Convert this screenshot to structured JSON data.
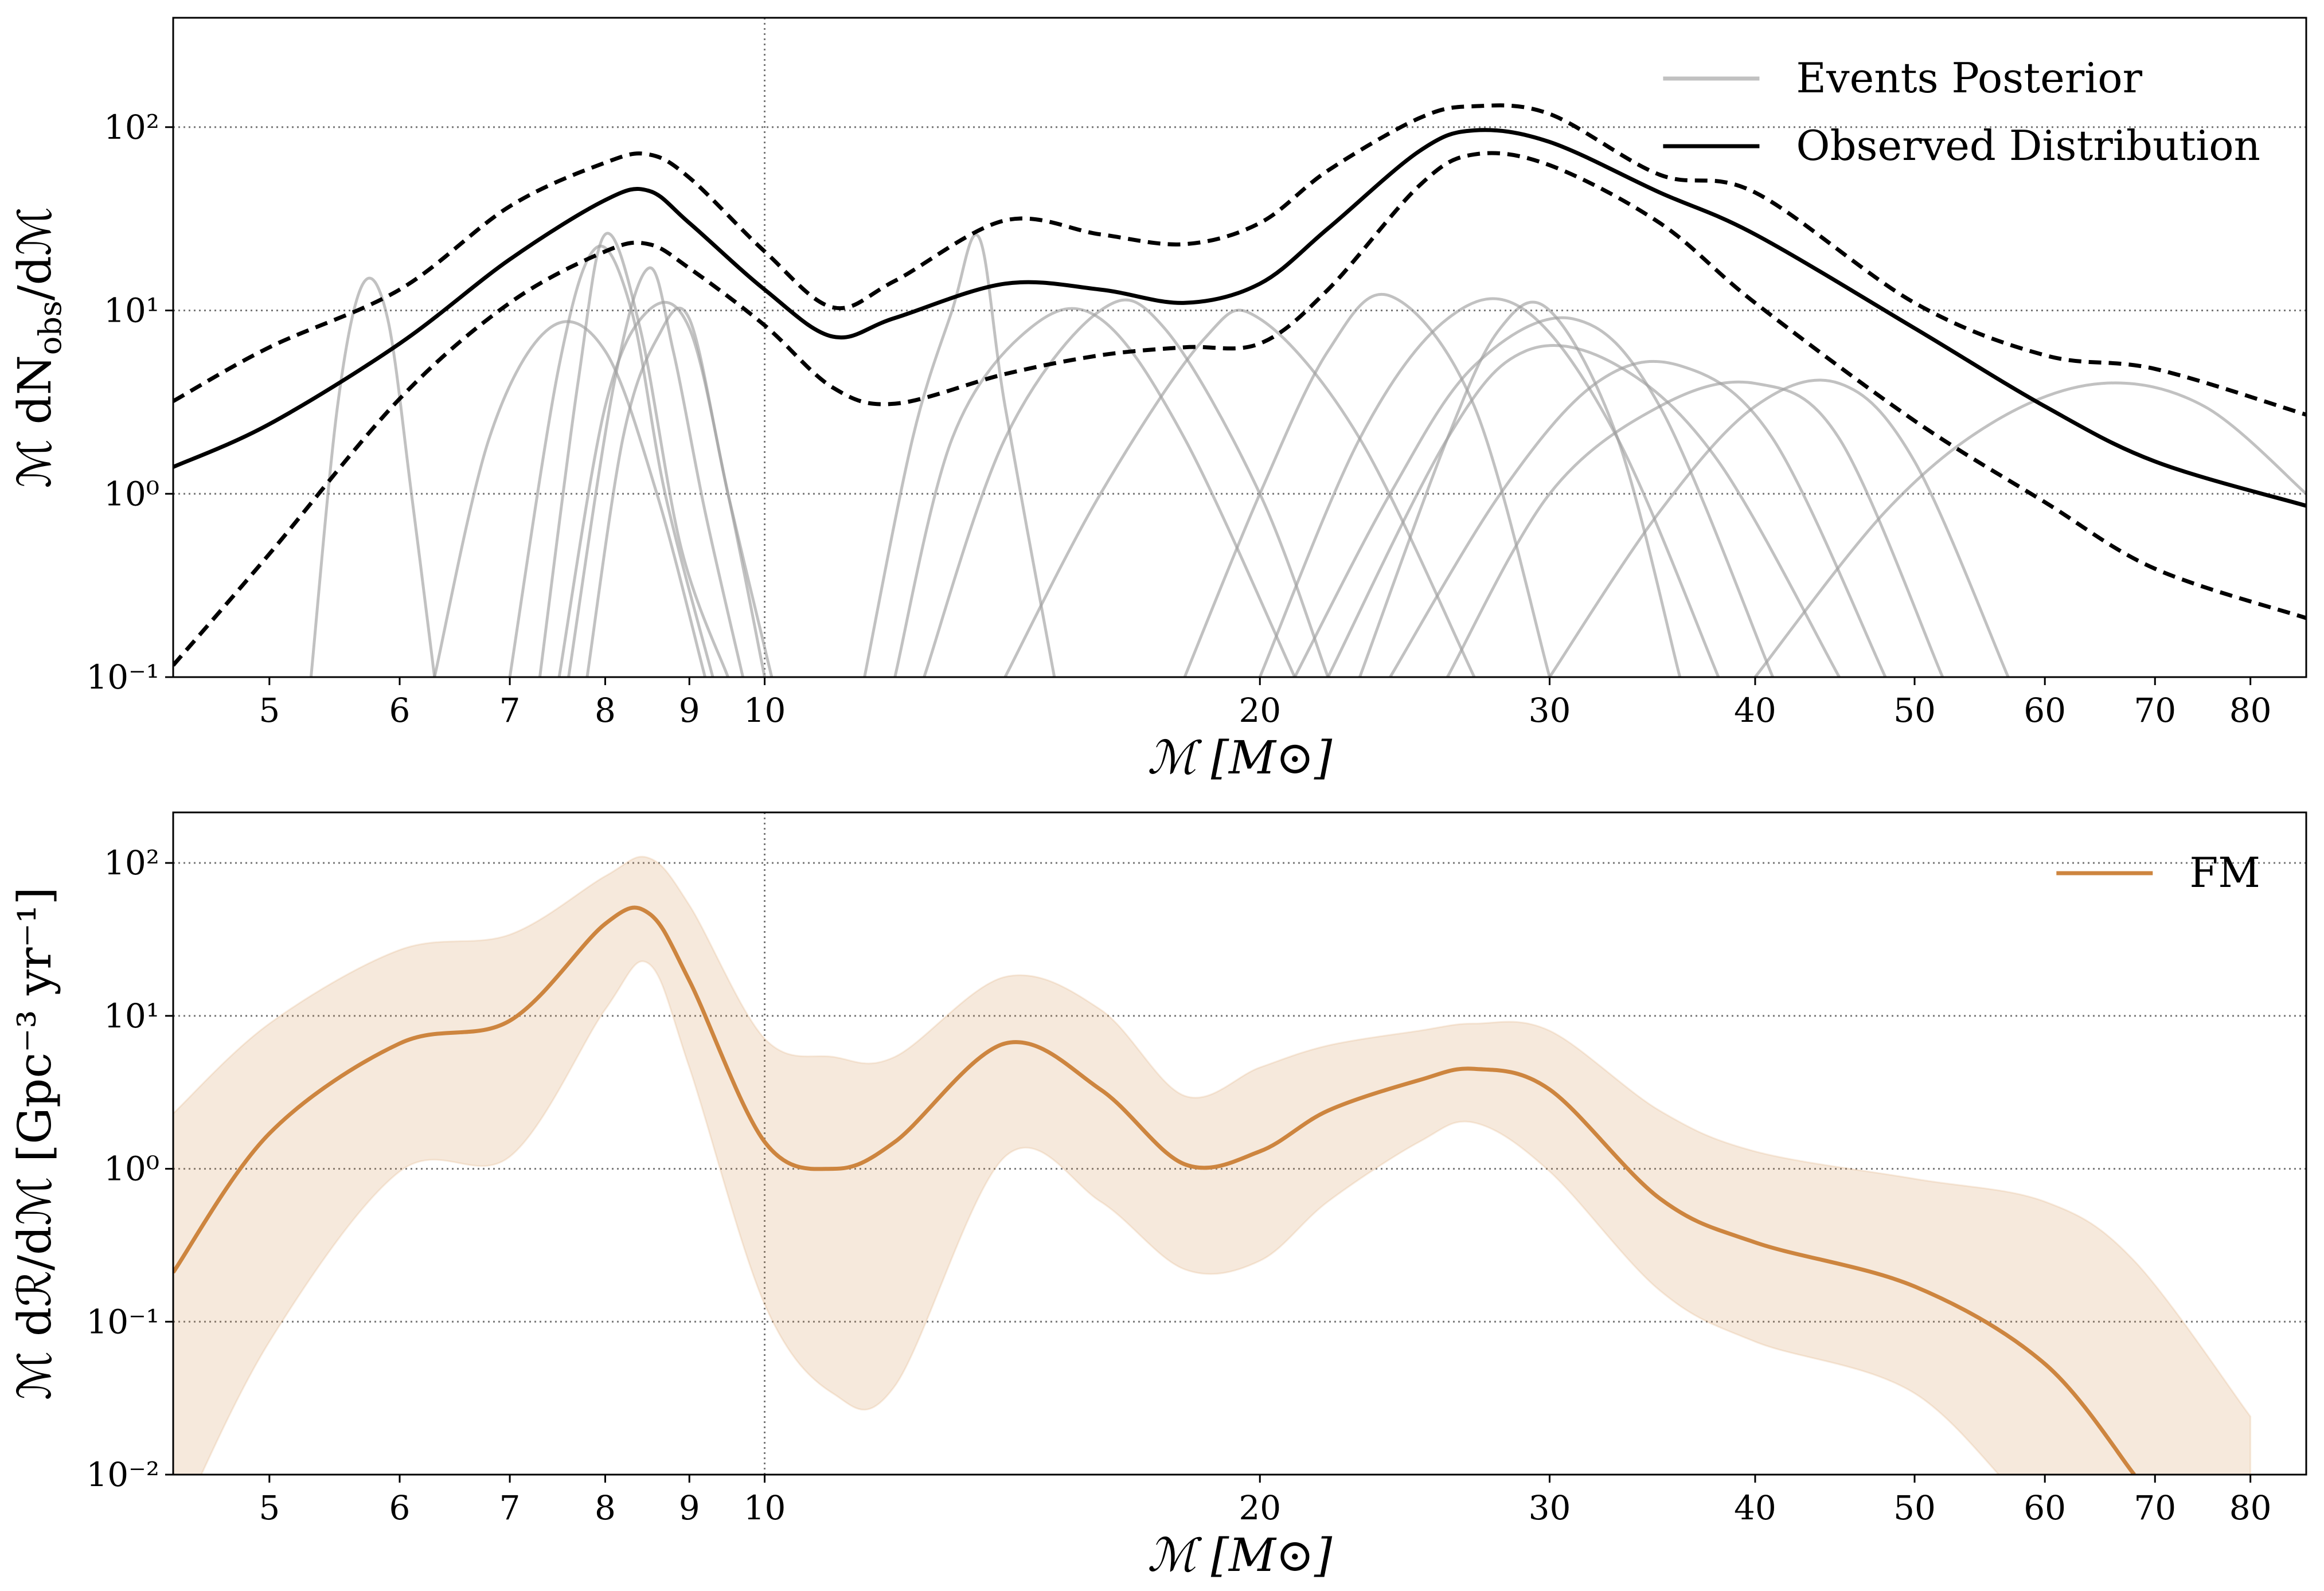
{
  "chart_data": [
    {
      "type": "line",
      "xscale": "log",
      "yscale": "log",
      "xlabel": "ℳ [M⊙]",
      "ylabel": [
        "ℳ dN",
        "obs",
        "/dℳ"
      ],
      "xlim": [
        4.37,
        86.5
      ],
      "ylim": [
        0.1,
        395
      ],
      "xticks": [
        5,
        6,
        7,
        8,
        9,
        10,
        20,
        30,
        40,
        50,
        60,
        70,
        80
      ],
      "yticks": [
        {
          "value": 0.1,
          "label": "10⁻¹"
        },
        {
          "value": 1,
          "label": "10⁰"
        },
        {
          "value": 10,
          "label": "10¹"
        },
        {
          "value": 100,
          "label": "10²"
        }
      ],
      "grid": true,
      "legend": "upper right",
      "band_style": "dashed",
      "x": [
        4.37,
        5,
        6,
        7,
        8,
        8.5,
        9,
        10,
        11,
        12,
        14,
        16,
        18,
        20,
        22,
        25,
        27,
        30,
        35,
        40,
        50,
        60,
        70,
        86.5
      ],
      "series": [
        {
          "name": "Events Posterior",
          "color": "#a0a0a0",
          "curves": [
            {
              "x": [
                5.3,
                5.5,
                5.7,
                5.9,
                6.1,
                6.3
              ],
              "values": [
                0.1,
                3,
                14,
                9,
                1,
                0.1
              ]
            },
            {
              "x": [
                6.3,
                6.8,
                7.4,
                8.0,
                8.6,
                9.2
              ],
              "values": [
                0.1,
                2,
                8,
                6,
                1,
                0.1
              ]
            },
            {
              "x": [
                7.0,
                7.5,
                7.9,
                8.3,
                8.7,
                9.3
              ],
              "values": [
                0.1,
                5,
                22,
                10,
                1,
                0.1
              ]
            },
            {
              "x": [
                7.3,
                7.7,
                8.0,
                8.4,
                8.9,
                9.5
              ],
              "values": [
                0.1,
                4,
                26,
                8,
                0.5,
                0.1
              ]
            },
            {
              "x": [
                7.5,
                8.0,
                8.5,
                9.0,
                9.5,
                10.0
              ],
              "values": [
                0.1,
                3,
                10,
                8,
                1,
                0.1
              ]
            },
            {
              "x": [
                7.8,
                8.2,
                8.6,
                9.0,
                9.5,
                10.1
              ],
              "values": [
                0.1,
                2,
                7,
                9,
                1,
                0.1
              ]
            },
            {
              "x": [
                7.6,
                8.1,
                8.5,
                8.8,
                9.2,
                9.7
              ],
              "values": [
                0.1,
                4,
                17,
                6,
                0.8,
                0.1
              ]
            },
            {
              "x": [
                11.5,
                12.3,
                13.0,
                13.5,
                14.0,
                15.0
              ],
              "values": [
                0.1,
                2,
                10,
                25,
                3,
                0.1
              ]
            },
            {
              "x": [
                12.0,
                13.0,
                14.5,
                16.0,
                18.0,
                21.0
              ],
              "values": [
                0.1,
                2,
                8,
                9,
                2,
                0.1
              ]
            },
            {
              "x": [
                12.5,
                14.0,
                16.0,
                17.5,
                20.0,
                22.0
              ],
              "values": [
                0.1,
                2,
                10,
                8,
                1,
                0.1
              ]
            },
            {
              "x": [
                14.0,
                16.0,
                18.5,
                20.0,
                23.0,
                27.0
              ],
              "values": [
                0.1,
                1,
                7,
                9,
                2,
                0.1
              ]
            },
            {
              "x": [
                18,
                20,
                22,
                24,
                27,
                30
              ],
              "values": [
                0.1,
                1,
                6,
                12,
                3,
                0.1
              ]
            },
            {
              "x": [
                20,
                23,
                26,
                29,
                33,
                38
              ],
              "values": [
                0.1,
                2,
                9,
                10,
                2,
                0.1
              ]
            },
            {
              "x": [
                21,
                24,
                27,
                31,
                35,
                41
              ],
              "values": [
                0.1,
                1,
                5,
                9,
                3,
                0.1
              ]
            },
            {
              "x": [
                22,
                26,
                29,
                33,
                38,
                45
              ],
              "values": [
                0.1,
                2,
                6,
                5,
                1.5,
                0.1
              ]
            },
            {
              "x": [
                24,
                28,
                32,
                36,
                41,
                48
              ],
              "values": [
                0.1,
                1,
                4,
                5,
                2,
                0.1
              ]
            },
            {
              "x": [
                26,
                30,
                35,
                40,
                45,
                52
              ],
              "values": [
                0.1,
                1,
                3,
                4,
                2,
                0.1
              ]
            },
            {
              "x": [
                30,
                35,
                40,
                45,
                50,
                57
              ],
              "values": [
                0.1,
                0.8,
                3,
                4,
                1.5,
                0.1
              ]
            },
            {
              "x": [
                40,
                48,
                56,
                65,
                75,
                86.5
              ],
              "values": [
                0.1,
                0.8,
                2.5,
                4,
                3,
                1.0
              ]
            },
            {
              "x": [
                23,
                26,
                28,
                30,
                33,
                36
              ],
              "values": [
                0.1,
                2,
                8,
                10,
                2,
                0.1
              ]
            }
          ]
        },
        {
          "name": "Observed Distribution",
          "color": "#000000",
          "values": [
            1.4,
            2.4,
            6.6,
            19,
            40,
            45,
            30,
            13,
            7.2,
            9.1,
            14,
            13,
            11,
            14,
            28,
            74,
            96,
            83,
            44,
            26,
            8.0,
            3.0,
            1.5,
            0.86
          ],
          "upper": [
            3.2,
            6.3,
            13,
            37,
            64,
            71,
            53,
            21,
            10.4,
            14.5,
            31,
            26,
            23,
            30,
            58,
            112,
            130,
            118,
            55,
            44,
            11,
            5.7,
            4.8,
            2.7
          ],
          "lower": [
            0.116,
            0.47,
            3.3,
            11,
            21,
            23,
            17,
            8.3,
            3.8,
            3.1,
            4.5,
            5.7,
            6.3,
            6.6,
            13,
            48,
            71,
            62,
            30,
            11,
            2.5,
            0.9,
            0.39,
            0.21
          ]
        }
      ]
    },
    {
      "type": "line",
      "xscale": "log",
      "yscale": "log",
      "xlabel": "ℳ [M⊙]",
      "ylabel": [
        "ℳ dℛ/dℳ [Gpc⁻³ yr⁻¹]"
      ],
      "xlim": [
        4.37,
        86.5
      ],
      "ylim": [
        0.01,
        214
      ],
      "xticks": [
        5,
        6,
        7,
        8,
        9,
        10,
        20,
        30,
        40,
        50,
        60,
        70,
        80
      ],
      "yticks": [
        {
          "value": 0.01,
          "label": "10⁻²"
        },
        {
          "value": 0.1,
          "label": "10⁻¹"
        },
        {
          "value": 1,
          "label": "10⁰"
        },
        {
          "value": 10,
          "label": "10¹"
        },
        {
          "value": 100,
          "label": "10²"
        }
      ],
      "grid": true,
      "legend": "upper right",
      "band_style": "fill",
      "x": [
        4.37,
        5,
        6,
        7,
        8,
        8.5,
        9,
        10,
        11,
        12,
        14,
        16,
        18,
        20,
        22,
        25,
        27,
        30,
        35,
        40,
        50,
        60,
        68,
        80
      ],
      "series": [
        {
          "name": "FM",
          "color": "#cd853f",
          "values": [
            0.21,
            1.7,
            6.6,
            9.3,
            40,
            47,
            17,
            1.5,
            1.0,
            1.5,
            6.6,
            3.3,
            1.07,
            1.3,
            2.4,
            3.8,
            4.5,
            3.3,
            0.64,
            0.33,
            0.17,
            0.053,
            0.01,
            null
          ],
          "upper": [
            2.3,
            8.9,
            27,
            34,
            82,
            108,
            53,
            7.1,
            5.4,
            5.4,
            18,
            11,
            3.0,
            4.6,
            6.4,
            8,
            8.9,
            8,
            2.4,
            1.3,
            0.86,
            0.61,
            0.25,
            0.024
          ],
          "lower": [
            0.004,
            0.074,
            0.96,
            1.2,
            11,
            22,
            4.6,
            0.13,
            0.034,
            0.038,
            1.2,
            0.61,
            0.22,
            0.25,
            0.61,
            1.5,
            2,
            0.96,
            0.16,
            0.074,
            0.034,
            0.005,
            0.003,
            0.002
          ]
        }
      ]
    }
  ]
}
